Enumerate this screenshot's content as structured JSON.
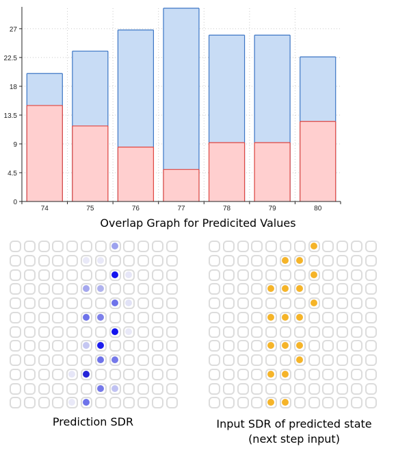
{
  "chart_data": {
    "type": "bar",
    "title": "Overlap Graph for Predicited Values",
    "categories": [
      "74",
      "75",
      "76",
      "77",
      "78",
      "79",
      "80"
    ],
    "series": [
      {
        "values": [
          20,
          23.5,
          26.8,
          30.2,
          26,
          26,
          22.6
        ],
        "color": "#c8dcf5",
        "edge": "#3a74c4"
      },
      {
        "values": [
          15,
          11.8,
          8.5,
          5,
          9.2,
          9.2,
          12.5
        ],
        "color": "#ffcfcf",
        "edge": "#e0453f"
      }
    ],
    "yticks": [
      "0",
      "4.5",
      "9",
      "13.5",
      "18",
      "22.5",
      "27"
    ],
    "ylim": [
      0,
      30.2
    ],
    "grid": true
  },
  "sdr_prediction": {
    "caption": "Prediction SDR",
    "rows": 12,
    "cols": 12,
    "cells": [
      {
        "r": 0,
        "c": 7,
        "color": "#9da2ee"
      },
      {
        "r": 1,
        "c": 5,
        "color": "#e9e9f8"
      },
      {
        "r": 1,
        "c": 6,
        "color": "#e9e9f8"
      },
      {
        "r": 2,
        "c": 7,
        "color": "#1313ee"
      },
      {
        "r": 2,
        "c": 8,
        "color": "#e6e6f7"
      },
      {
        "r": 3,
        "c": 5,
        "color": "#a4a7ee"
      },
      {
        "r": 3,
        "c": 6,
        "color": "#b0b3ee"
      },
      {
        "r": 4,
        "c": 7,
        "color": "#6e73ea"
      },
      {
        "r": 4,
        "c": 8,
        "color": "#e1e2f6"
      },
      {
        "r": 5,
        "c": 5,
        "color": "#6e73ea"
      },
      {
        "r": 5,
        "c": 6,
        "color": "#7d80ea"
      },
      {
        "r": 6,
        "c": 7,
        "color": "#1313ee"
      },
      {
        "r": 6,
        "c": 8,
        "color": "#e9e9f8"
      },
      {
        "r": 7,
        "c": 5,
        "color": "#c5c7f2"
      },
      {
        "r": 7,
        "c": 6,
        "color": "#1d1dee"
      },
      {
        "r": 8,
        "c": 6,
        "color": "#6e73ea"
      },
      {
        "r": 8,
        "c": 7,
        "color": "#7579ea"
      },
      {
        "r": 9,
        "c": 4,
        "color": "#e6e6f7"
      },
      {
        "r": 9,
        "c": 5,
        "color": "#2424d8"
      },
      {
        "r": 10,
        "c": 6,
        "color": "#7579ea"
      },
      {
        "r": 10,
        "c": 7,
        "color": "#c0c2f2"
      },
      {
        "r": 11,
        "c": 4,
        "color": "#e9e9f8"
      },
      {
        "r": 11,
        "c": 5,
        "color": "#6e73ea"
      }
    ]
  },
  "sdr_input": {
    "caption": "Input SDR of predicted state (next step input)",
    "rows": 12,
    "cols": 12,
    "color": "#f5b429",
    "cells": [
      [
        0,
        7
      ],
      [
        1,
        5
      ],
      [
        1,
        6
      ],
      [
        2,
        7
      ],
      [
        3,
        4
      ],
      [
        3,
        5
      ],
      [
        3,
        6
      ],
      [
        4,
        7
      ],
      [
        5,
        4
      ],
      [
        5,
        5
      ],
      [
        5,
        6
      ],
      [
        7,
        4
      ],
      [
        7,
        5
      ],
      [
        7,
        6
      ],
      [
        8,
        6
      ],
      [
        9,
        4
      ],
      [
        9,
        5
      ],
      [
        11,
        4
      ],
      [
        11,
        5
      ]
    ]
  }
}
